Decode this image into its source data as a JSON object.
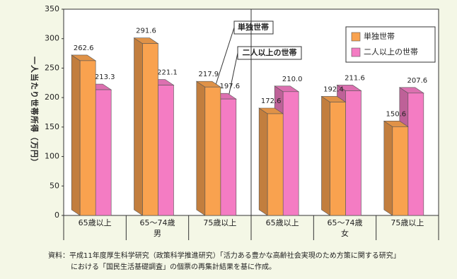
{
  "chart_data": {
    "type": "bar3d",
    "y_label": "一人当たり世帯所得（万円）",
    "categories": [
      "65歳以上",
      "65～74歳",
      "75歳以上",
      "65歳以上",
      "65～74歳",
      "75歳以上"
    ],
    "groups": [
      "男",
      "女"
    ],
    "series": [
      {
        "name": "単独世帯",
        "color": "#f9a24f",
        "values": [
          262.6,
          291.6,
          217.9,
          172.6,
          192.4,
          150.6
        ],
        "value_labels": [
          "262.6",
          "291.6",
          "217.9",
          "172.6",
          "192.4",
          "150.6"
        ]
      },
      {
        "name": "二人以上の世帯",
        "color": "#f47cc3",
        "values": [
          213.3,
          221.1,
          197.6,
          210.0,
          211.6,
          207.6
        ],
        "value_labels": [
          "213.3",
          "221.1",
          "197.6",
          "210.0",
          "211.6",
          "207.6"
        ]
      }
    ],
    "annotations": [
      "単独世帯",
      "二人以上の世帯"
    ],
    "ylim": [
      0,
      350
    ],
    "yticks": [
      0,
      50,
      100,
      150,
      200,
      250,
      300,
      350
    ],
    "source": [
      "資料：平成11年度厚生科学研究（政策科学推進研究）「活力ある豊かな高齢社会実現のため方策に関する研究」",
      "における「国民生活基礎調査」の個票の再集計結果を基に作成。"
    ]
  }
}
